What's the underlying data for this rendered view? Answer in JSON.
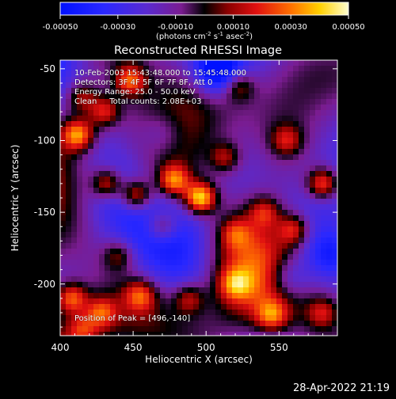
{
  "chart_data": {
    "type": "heatmap",
    "title": "Reconstructed RHESSI Image",
    "xlabel": "Heliocentric X (arcsec)",
    "ylabel": "Heliocentric Y (arcsec)",
    "xlim": [
      400,
      590
    ],
    "ylim": [
      -236,
      -44
    ],
    "x_ticks": [
      400,
      450,
      500,
      550
    ],
    "y_ticks": [
      -50,
      -100,
      -150,
      -200
    ],
    "colorbar": {
      "range": [
        -0.0005,
        0.0005
      ],
      "ticks": [
        "-0.00050",
        "-0.00030",
        "-0.00010",
        "0.00010",
        "0.00030",
        "0.00050"
      ],
      "units_html": "(photons cm<sup>-2</sup> s<sup>-1</sup> asec<sup>-2</sup>)"
    },
    "annotations": [
      "10-Feb-2003 15:43:48.000 to 15:45:48.000",
      "Detectors: 3F 4F 5F 6F 7F 8F, Att 0",
      "Energy Range: 25.0 - 50.0 keV",
      "Clean     Total counts: 2.08E+03"
    ],
    "peak_label": "Position of Peak = [496,-140]",
    "peak_position": [
      496,
      -140
    ],
    "sources": [
      {
        "x": 496,
        "y": -140,
        "amp": 1.0
      },
      {
        "x": 478,
        "y": -128,
        "amp": 0.75
      },
      {
        "x": 452,
        "y": -138,
        "amp": 0.7
      },
      {
        "x": 432,
        "y": -130,
        "amp": 0.65
      },
      {
        "x": 513,
        "y": -112,
        "amp": 0.45
      },
      {
        "x": 412,
        "y": -96,
        "amp": 0.8
      },
      {
        "x": 430,
        "y": -80,
        "amp": 0.55
      },
      {
        "x": 448,
        "y": -58,
        "amp": 0.65
      },
      {
        "x": 415,
        "y": -70,
        "amp": 0.45
      },
      {
        "x": 580,
        "y": -130,
        "amp": 0.75
      },
      {
        "x": 555,
        "y": -100,
        "amp": 0.45
      },
      {
        "x": 560,
        "y": -162,
        "amp": 0.55
      },
      {
        "x": 540,
        "y": -150,
        "amp": 0.45
      },
      {
        "x": 522,
        "y": -62,
        "amp": 0.45
      },
      {
        "x": 408,
        "y": -210,
        "amp": 0.7
      },
      {
        "x": 428,
        "y": -220,
        "amp": 0.55
      },
      {
        "x": 455,
        "y": -208,
        "amp": 0.55
      },
      {
        "x": 488,
        "y": -210,
        "amp": 0.45
      },
      {
        "x": 520,
        "y": -200,
        "amp": 0.5
      },
      {
        "x": 545,
        "y": -222,
        "amp": 0.55
      },
      {
        "x": 580,
        "y": -220,
        "amp": 0.45
      },
      {
        "x": 440,
        "y": -180,
        "amp": 0.4
      },
      {
        "x": 470,
        "y": -160,
        "amp": 0.45
      },
      {
        "x": 520,
        "y": -165,
        "amp": 0.4
      },
      {
        "x": 415,
        "y": -232,
        "amp": 0.45
      }
    ],
    "negatives": [
      {
        "x": 508,
        "y": -52,
        "amp": 0.75
      },
      {
        "x": 556,
        "y": -196,
        "amp": 0.5
      },
      {
        "x": 585,
        "y": -180,
        "amp": 0.35
      },
      {
        "x": 470,
        "y": -95,
        "amp": 0.3
      }
    ]
  },
  "footer": {
    "timestamp": "28-Apr-2022 21:19"
  }
}
